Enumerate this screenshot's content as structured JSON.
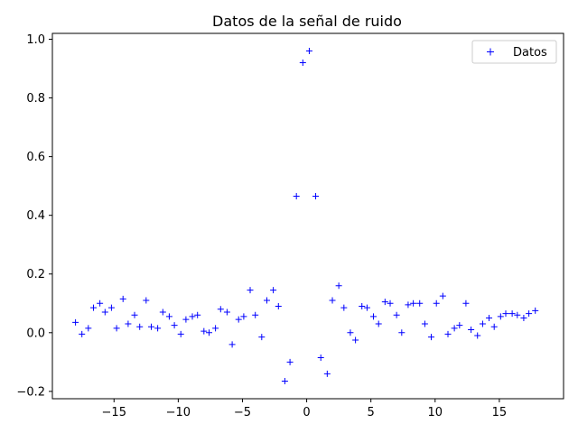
{
  "chart_data": {
    "type": "scatter",
    "title": "Datos de la señal de ruido",
    "xlabel": "",
    "ylabel": "",
    "xlim": [
      -19.8,
      20.0
    ],
    "ylim": [
      -0.225,
      1.02
    ],
    "xticks": [
      -15,
      -10,
      -5,
      0,
      5,
      10,
      15
    ],
    "xtick_labels": [
      "−15",
      "−10",
      "−5",
      "0",
      "5",
      "10",
      "15"
    ],
    "yticks": [
      -0.2,
      0.0,
      0.2,
      0.4,
      0.6,
      0.8,
      1.0
    ],
    "ytick_labels": [
      "−0.2",
      "0.0",
      "0.2",
      "0.4",
      "0.6",
      "0.8",
      "1.0"
    ],
    "grid": false,
    "legend_position": "upper right",
    "marker": "+",
    "series": [
      {
        "name": "Datos",
        "color": "#0000ff",
        "marker": "+",
        "points": [
          [
            -18.0,
            0.035
          ],
          [
            -17.5,
            -0.005
          ],
          [
            -17.0,
            0.015
          ],
          [
            -16.6,
            0.085
          ],
          [
            -16.1,
            0.1
          ],
          [
            -15.7,
            0.07
          ],
          [
            -15.2,
            0.085
          ],
          [
            -14.8,
            0.015
          ],
          [
            -14.3,
            0.115
          ],
          [
            -13.9,
            0.03
          ],
          [
            -13.4,
            0.06
          ],
          [
            -13.0,
            0.02
          ],
          [
            -12.5,
            0.11
          ],
          [
            -12.1,
            0.02
          ],
          [
            -11.6,
            0.015
          ],
          [
            -11.2,
            0.07
          ],
          [
            -10.7,
            0.055
          ],
          [
            -10.3,
            0.025
          ],
          [
            -9.8,
            -0.005
          ],
          [
            -9.4,
            0.045
          ],
          [
            -8.9,
            0.055
          ],
          [
            -8.5,
            0.06
          ],
          [
            -8.0,
            0.005
          ],
          [
            -7.6,
            0.0
          ],
          [
            -7.1,
            0.015
          ],
          [
            -6.7,
            0.08
          ],
          [
            -6.2,
            0.07
          ],
          [
            -5.8,
            -0.04
          ],
          [
            -5.3,
            0.045
          ],
          [
            -4.9,
            0.055
          ],
          [
            -4.4,
            0.145
          ],
          [
            -4.0,
            0.06
          ],
          [
            -3.5,
            -0.015
          ],
          [
            -3.1,
            0.11
          ],
          [
            -2.6,
            0.145
          ],
          [
            -2.2,
            0.09
          ],
          [
            -1.7,
            -0.165
          ],
          [
            -1.3,
            -0.1
          ],
          [
            -0.8,
            0.465
          ],
          [
            -0.3,
            0.92
          ],
          [
            0.2,
            0.96
          ],
          [
            0.7,
            0.465
          ],
          [
            1.1,
            -0.085
          ],
          [
            1.6,
            -0.14
          ],
          [
            2.0,
            0.11
          ],
          [
            2.5,
            0.16
          ],
          [
            2.9,
            0.085
          ],
          [
            3.4,
            0.0
          ],
          [
            3.8,
            -0.025
          ],
          [
            4.3,
            0.09
          ],
          [
            4.7,
            0.085
          ],
          [
            5.2,
            0.055
          ],
          [
            5.6,
            0.03
          ],
          [
            6.1,
            0.105
          ],
          [
            6.5,
            0.1
          ],
          [
            7.0,
            0.06
          ],
          [
            7.4,
            0.0
          ],
          [
            7.9,
            0.095
          ],
          [
            8.3,
            0.1
          ],
          [
            8.8,
            0.1
          ],
          [
            9.2,
            0.03
          ],
          [
            9.7,
            -0.015
          ],
          [
            10.1,
            0.1
          ],
          [
            10.6,
            0.125
          ],
          [
            11.0,
            -0.005
          ],
          [
            11.5,
            0.015
          ],
          [
            11.9,
            0.025
          ],
          [
            12.4,
            0.1
          ],
          [
            12.8,
            0.01
          ],
          [
            13.3,
            -0.01
          ],
          [
            13.7,
            0.03
          ],
          [
            14.2,
            0.05
          ],
          [
            14.6,
            0.02
          ],
          [
            15.1,
            0.055
          ],
          [
            15.5,
            0.065
          ],
          [
            16.0,
            0.065
          ],
          [
            16.4,
            0.06
          ],
          [
            16.9,
            0.05
          ],
          [
            17.3,
            0.065
          ],
          [
            17.8,
            0.075
          ]
        ]
      }
    ]
  }
}
